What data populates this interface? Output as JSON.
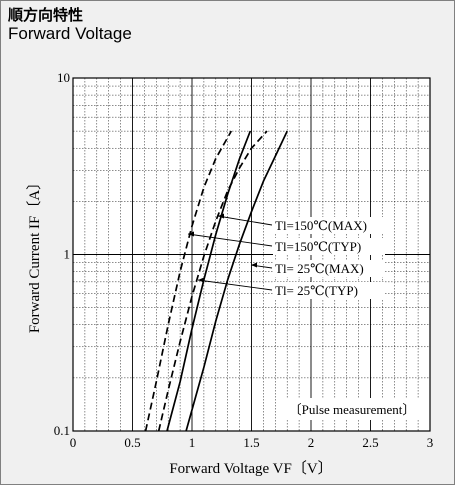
{
  "header": {
    "title_jp": "順方向特性",
    "title_en": "Forward Voltage"
  },
  "chart_data": {
    "type": "line",
    "title": "Forward Voltage",
    "xlabel": "Forward Voltage  VF〔V〕",
    "ylabel": "Forward Current  IF〔A〕",
    "xlim": [
      0,
      3
    ],
    "ylim": [
      0.1,
      10
    ],
    "y_scale": "log",
    "x_ticks": [
      "0",
      "0.5",
      "1",
      "1.5",
      "2",
      "2.5",
      "3"
    ],
    "y_ticks": [
      "0.1",
      "1",
      "10"
    ],
    "grid": true,
    "note": "〔Pulse measurement〕",
    "series": [
      {
        "name": "Tl=150℃(MAX)",
        "line": "solid",
        "x": [
          0.79,
          0.9,
          1.0,
          1.1,
          1.2,
          1.3,
          1.4,
          1.49
        ],
        "y": [
          0.1,
          0.19,
          0.38,
          0.72,
          1.3,
          2.2,
          3.5,
          5.0
        ]
      },
      {
        "name": "Tl=150℃(TYP)",
        "line": "dashed",
        "x": [
          0.61,
          0.7,
          0.8,
          0.9,
          1.0,
          1.1,
          1.2,
          1.33
        ],
        "y": [
          0.1,
          0.19,
          0.4,
          0.8,
          1.45,
          2.4,
          3.5,
          5.0
        ]
      },
      {
        "name": "Tl= 25℃(MAX)",
        "line": "solid",
        "x": [
          0.95,
          1.1,
          1.2,
          1.3,
          1.4,
          1.5,
          1.6,
          1.7,
          1.8
        ],
        "y": [
          0.1,
          0.23,
          0.42,
          0.72,
          1.15,
          1.75,
          2.6,
          3.6,
          5.0
        ]
      },
      {
        "name": "Tl= 25℃(TYP)",
        "line": "dashed",
        "x": [
          0.72,
          0.8,
          0.9,
          1.0,
          1.1,
          1.2,
          1.3,
          1.4,
          1.5,
          1.63
        ],
        "y": [
          0.1,
          0.17,
          0.32,
          0.58,
          0.98,
          1.55,
          2.3,
          3.1,
          4.0,
          5.0
        ]
      }
    ],
    "curve_labels": [
      "Tl=150℃(MAX)",
      "Tl=150℃(TYP)",
      "Tl= 25℃(MAX)",
      "Tl= 25℃(TYP)"
    ]
  }
}
